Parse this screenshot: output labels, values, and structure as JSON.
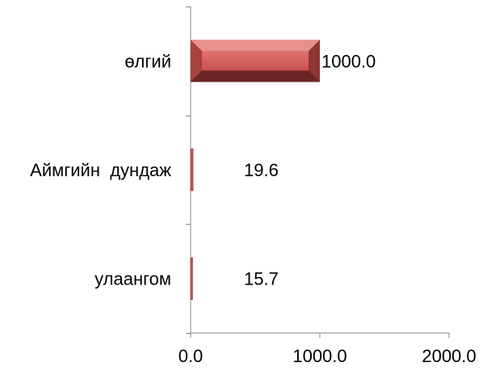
{
  "chart_data": {
    "type": "bar",
    "orientation": "horizontal",
    "categories": [
      "өлгий",
      "Аймгийн  дундаж",
      "улаангом"
    ],
    "values": [
      1000.0,
      19.6,
      15.7
    ],
    "value_labels": [
      "1000.0",
      "19.6",
      "15.7"
    ],
    "xlim": [
      0,
      2000
    ],
    "x_ticks": [
      "0.0",
      "1000.0",
      "2000.0"
    ],
    "title": "",
    "xlabel": "",
    "ylabel": "",
    "grid": false,
    "legend": "none",
    "bar_color": "#c0504d"
  }
}
